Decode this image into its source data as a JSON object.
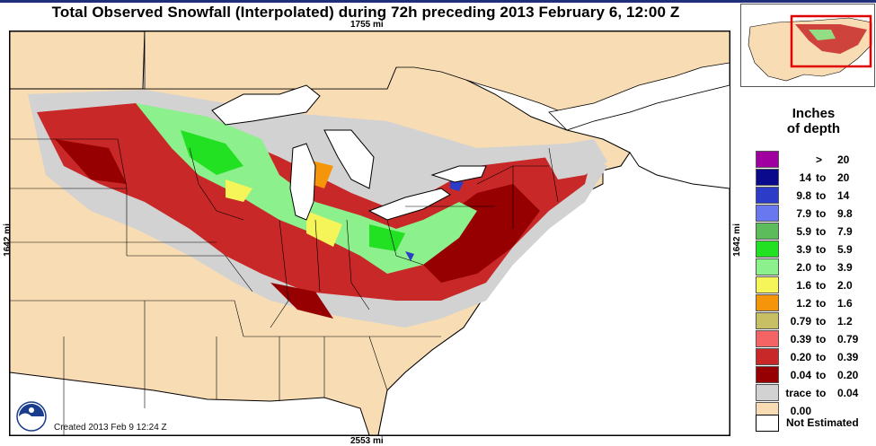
{
  "title": "Total Observed Snowfall (Interpolated) during 72h preceding 2013 February 6, 12:00 Z",
  "dimensions": {
    "top": "1755 mi",
    "bottom": "2553 mi",
    "left": "1642 mi",
    "right": "1642 mi"
  },
  "created": "Created 2013 Feb 9 12:24 Z",
  "legend": {
    "title_line1": "Inches",
    "title_line2": "of depth",
    "items": [
      {
        "low": "",
        "to": ">",
        "high": "20",
        "color": "#a000a0"
      },
      {
        "low": "14",
        "to": "to",
        "high": "20",
        "color": "#0a0a8c"
      },
      {
        "low": "9.8",
        "to": "to",
        "high": "14",
        "color": "#2c3cc8"
      },
      {
        "low": "7.9",
        "to": "to",
        "high": "9.8",
        "color": "#6a78f0"
      },
      {
        "low": "5.9",
        "to": "to",
        "high": "7.9",
        "color": "#5cbc5c"
      },
      {
        "low": "3.9",
        "to": "to",
        "high": "5.9",
        "color": "#22e022"
      },
      {
        "low": "2.0",
        "to": "to",
        "high": "3.9",
        "color": "#8cf08c"
      },
      {
        "low": "1.6",
        "to": "to",
        "high": "2.0",
        "color": "#f5f55a"
      },
      {
        "low": "1.2",
        "to": "to",
        "high": "1.6",
        "color": "#f5960a"
      },
      {
        "low": "0.79",
        "to": "to",
        "high": "1.2",
        "color": "#c8be64"
      },
      {
        "low": "0.39",
        "to": "to",
        "high": "0.79",
        "color": "#f56464"
      },
      {
        "low": "0.20",
        "to": "to",
        "high": "0.39",
        "color": "#c82828"
      },
      {
        "low": "0.04",
        "to": "to",
        "high": "0.20",
        "color": "#960000"
      },
      {
        "low": "trace",
        "to": "to",
        "high": "0.04",
        "color": "#d2d2d2"
      },
      {
        "low": "0.00",
        "to": "",
        "high": "",
        "color": "#f8dcb4"
      }
    ],
    "not_estimated": "Not Estimated"
  },
  "colors": {
    "land": "#f8dcb4",
    "water": "#ffffff",
    "border": "#000000",
    "inset_box": "#e00000"
  }
}
